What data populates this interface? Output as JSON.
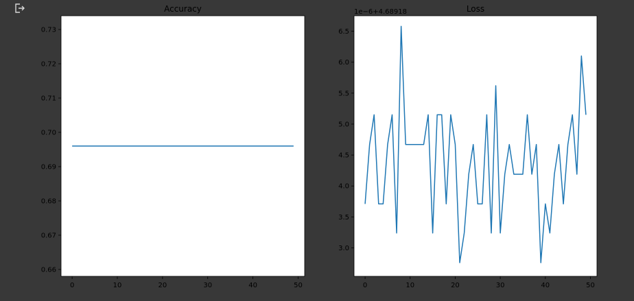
{
  "icons": {
    "output": "output-arrow-icon"
  },
  "colors": {
    "background": "#383838",
    "axes_face": "#ffffff",
    "series": "#1f77b4"
  },
  "chart_data": [
    {
      "type": "line",
      "title": "Accuracy",
      "xlabel": "",
      "ylabel": "",
      "xlim": [
        -2.45,
        51.45
      ],
      "ylim": [
        0.658,
        0.734
      ],
      "xticks": [
        0,
        10,
        20,
        30,
        40,
        50
      ],
      "yticks": [
        0.66,
        0.67,
        0.68,
        0.69,
        0.7,
        0.71,
        0.72,
        0.73
      ],
      "ytick_labels": [
        "0.66",
        "0.67",
        "0.68",
        "0.69",
        "0.70",
        "0.71",
        "0.72",
        "0.73"
      ],
      "offset_text": "",
      "grid": false,
      "series": [
        {
          "x_start": 0,
          "values": [
            0.696,
            0.696,
            0.696,
            0.696,
            0.696,
            0.696,
            0.696,
            0.696,
            0.696,
            0.696,
            0.696,
            0.696,
            0.696,
            0.696,
            0.696,
            0.696,
            0.696,
            0.696,
            0.696,
            0.696,
            0.696,
            0.696,
            0.696,
            0.696,
            0.696,
            0.696,
            0.696,
            0.696,
            0.696,
            0.696,
            0.696,
            0.696,
            0.696,
            0.696,
            0.696,
            0.696,
            0.696,
            0.696,
            0.696,
            0.696,
            0.696,
            0.696,
            0.696,
            0.696,
            0.696,
            0.696,
            0.696,
            0.696,
            0.696,
            0.696
          ]
        }
      ]
    },
    {
      "type": "line",
      "title": "Loss",
      "xlabel": "",
      "ylabel": "",
      "xlim": [
        -2.45,
        51.45
      ],
      "ylim": [
        2.54,
        6.75
      ],
      "xticks": [
        0,
        10,
        20,
        30,
        40,
        50
      ],
      "yticks": [
        3.0,
        3.5,
        4.0,
        4.5,
        5.0,
        5.5,
        6.0,
        6.5
      ],
      "ytick_labels": [
        "3.0",
        "3.5",
        "4.0",
        "4.5",
        "5.0",
        "5.5",
        "6.0",
        "6.5"
      ],
      "offset_text": "1e−6+4.68918",
      "grid": false,
      "series": [
        {
          "x_start": 0,
          "values": [
            3.71,
            4.67,
            5.15,
            3.71,
            3.71,
            4.67,
            5.15,
            3.24,
            6.58,
            4.67,
            4.67,
            4.67,
            4.67,
            4.67,
            5.15,
            3.24,
            5.15,
            5.15,
            3.71,
            5.15,
            4.67,
            2.76,
            3.24,
            4.19,
            4.67,
            3.71,
            3.71,
            5.15,
            3.24,
            5.62,
            3.24,
            4.19,
            4.67,
            4.19,
            4.19,
            4.19,
            5.15,
            4.19,
            4.67,
            2.76,
            3.71,
            3.24,
            4.19,
            4.67,
            3.71,
            4.67,
            5.15,
            4.19,
            6.1,
            5.15
          ]
        }
      ]
    }
  ]
}
